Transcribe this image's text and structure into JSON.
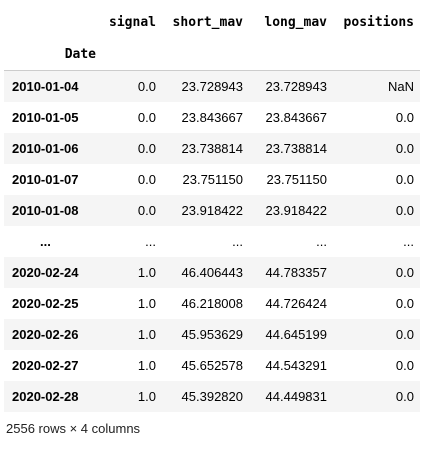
{
  "dataframe": {
    "columns": [
      "signal",
      "short_mav",
      "long_mav",
      "positions"
    ],
    "index_name": "Date",
    "rows": [
      {
        "index": "2010-01-04",
        "cells": [
          "0.0",
          "23.728943",
          "23.728943",
          "NaN"
        ]
      },
      {
        "index": "2010-01-05",
        "cells": [
          "0.0",
          "23.843667",
          "23.843667",
          "0.0"
        ]
      },
      {
        "index": "2010-01-06",
        "cells": [
          "0.0",
          "23.738814",
          "23.738814",
          "0.0"
        ]
      },
      {
        "index": "2010-01-07",
        "cells": [
          "0.0",
          "23.751150",
          "23.751150",
          "0.0"
        ]
      },
      {
        "index": "2010-01-08",
        "cells": [
          "0.0",
          "23.918422",
          "23.918422",
          "0.0"
        ]
      },
      {
        "index": "...",
        "cells": [
          "...",
          "...",
          "...",
          "..."
        ]
      },
      {
        "index": "2020-02-24",
        "cells": [
          "1.0",
          "46.406443",
          "44.783357",
          "0.0"
        ]
      },
      {
        "index": "2020-02-25",
        "cells": [
          "1.0",
          "46.218008",
          "44.726424",
          "0.0"
        ]
      },
      {
        "index": "2020-02-26",
        "cells": [
          "1.0",
          "45.953629",
          "44.645199",
          "0.0"
        ]
      },
      {
        "index": "2020-02-27",
        "cells": [
          "1.0",
          "45.652578",
          "44.543291",
          "0.0"
        ]
      },
      {
        "index": "2020-02-28",
        "cells": [
          "1.0",
          "45.392820",
          "44.449831",
          "0.0"
        ]
      }
    ],
    "shape_text": "2556 rows × 4 columns"
  }
}
